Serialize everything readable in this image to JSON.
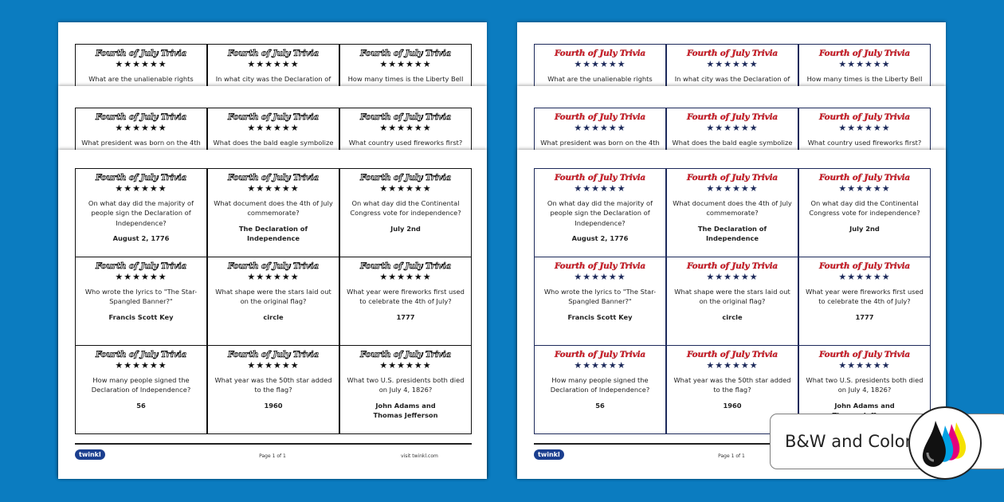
{
  "card_title": "Fourth of July Trivia",
  "stars": "★★★★★★",
  "back_sheets": [
    {
      "questions": [
        "What are the unalienable rights",
        "In what city was the Declaration of",
        "How many times is the Liberty Bell"
      ]
    },
    {
      "questions": [
        "What president was born on the 4th",
        "What does the bald eagle symbolize",
        "What country used fireworks first?"
      ]
    }
  ],
  "cards": [
    {
      "question": "On what day did the majority of people sign the Declaration of Independence?",
      "answer": "August 2, 1776"
    },
    {
      "question": "What document does the 4th of July commemorate?",
      "answer": "The Declaration of Independence"
    },
    {
      "question": "On what day did the Continental Congress vote for independence?",
      "answer": "July 2nd"
    },
    {
      "question": "Who wrote the lyrics to \"The Star-Spangled Banner?\"",
      "answer": "Francis Scott Key"
    },
    {
      "question": "What shape were the stars laid out on the original flag?",
      "answer": "circle"
    },
    {
      "question": "What year were fireworks first used to celebrate the 4th of July?",
      "answer": "1777"
    },
    {
      "question": "How many people signed the Declaration of Independence?",
      "answer": "56"
    },
    {
      "question": "What year was the 50th star added to the flag?",
      "answer": "1960"
    },
    {
      "question": "What two U.S. presidents both died on July 4, 1826?",
      "answer": "John Adams and Thomas Jefferson"
    }
  ],
  "footer": {
    "logo": "twinkl",
    "page": "Page 1 of 1",
    "site": "visit twinkl.com"
  },
  "badge": {
    "label": "B&W and Color"
  }
}
